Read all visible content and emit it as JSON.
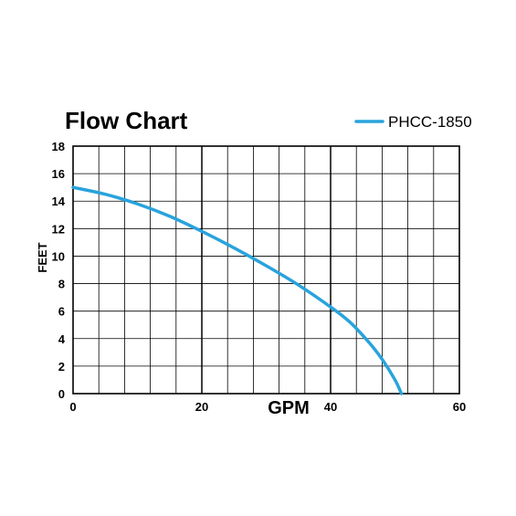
{
  "chart_data": {
    "type": "line",
    "title": "Flow Chart",
    "xlabel": "GPM",
    "ylabel": "FEET",
    "xlim": [
      0,
      60
    ],
    "ylim": [
      0,
      18
    ],
    "x_ticks": [
      0,
      20,
      40,
      60
    ],
    "y_ticks": [
      0,
      2,
      4,
      6,
      8,
      10,
      12,
      14,
      16,
      18
    ],
    "x_minor_step": 4,
    "grid": true,
    "legend_position": "top-right",
    "series": [
      {
        "name": "PHCC-1850",
        "color": "#29a3dc",
        "x": [
          0,
          5,
          10,
          15,
          20,
          25,
          30,
          35,
          40,
          43,
          46,
          48,
          50,
          51
        ],
        "y": [
          15.0,
          14.5,
          13.8,
          12.9,
          11.8,
          10.6,
          9.3,
          7.9,
          6.3,
          5.2,
          3.7,
          2.5,
          1.0,
          0
        ]
      }
    ]
  }
}
